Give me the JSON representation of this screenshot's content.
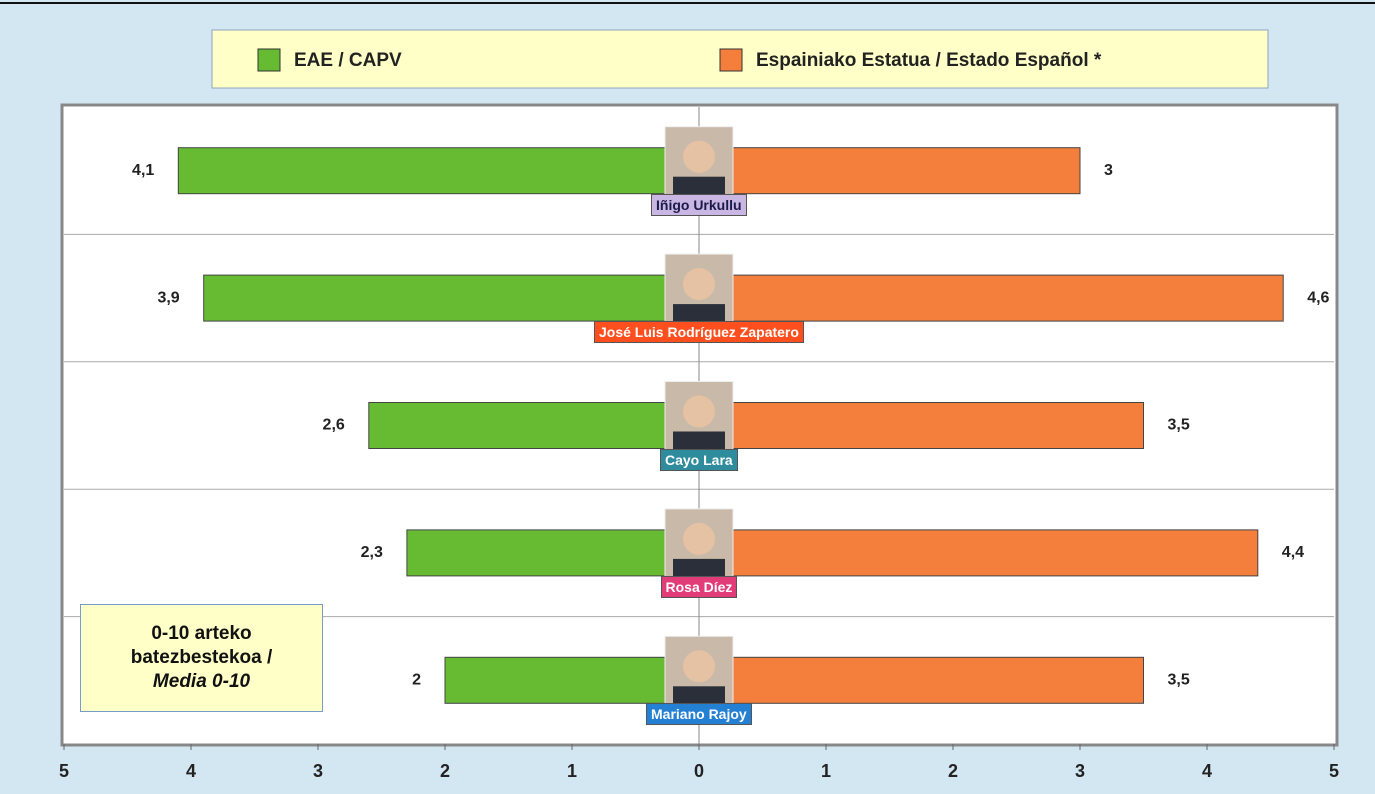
{
  "chart_data": {
    "type": "butterfly-bar",
    "categories": [
      "Iñigo Urkullu",
      "José Luis Rodríguez Zapatero",
      "Cayo Lara",
      "Rosa Díez",
      "Mariano Rajoy"
    ],
    "category_colors": [
      "#c9b6e2",
      "#ff4f1f",
      "#2f8c9c",
      "#e23c78",
      "#2380d2"
    ],
    "series": [
      {
        "name": "EAE / CAPV",
        "color": "#66bb33",
        "values": [
          4.1,
          3.9,
          2.6,
          2.3,
          2
        ],
        "value_labels": [
          "4,1",
          "3,9",
          "2,6",
          "2,3",
          "2"
        ]
      },
      {
        "name": "Espainiako Estatua / Estado Español *",
        "color": "#f47f3c",
        "values": [
          3,
          4.6,
          3.5,
          4.4,
          3.5
        ],
        "value_labels": [
          "3",
          "4,6",
          "3,5",
          "4,4",
          "3,5"
        ]
      }
    ],
    "xlim": [
      -5,
      5
    ],
    "xticks": [
      {
        "value": -5,
        "label": "5"
      },
      {
        "value": -4,
        "label": "4"
      },
      {
        "value": -3,
        "label": "3"
      },
      {
        "value": -2,
        "label": "2"
      },
      {
        "value": -1,
        "label": "1"
      },
      0,
      1,
      2,
      3,
      4,
      5
    ],
    "annotation": [
      "0-10 arteko",
      "batezbestekoa /",
      "Media 0-10"
    ]
  }
}
